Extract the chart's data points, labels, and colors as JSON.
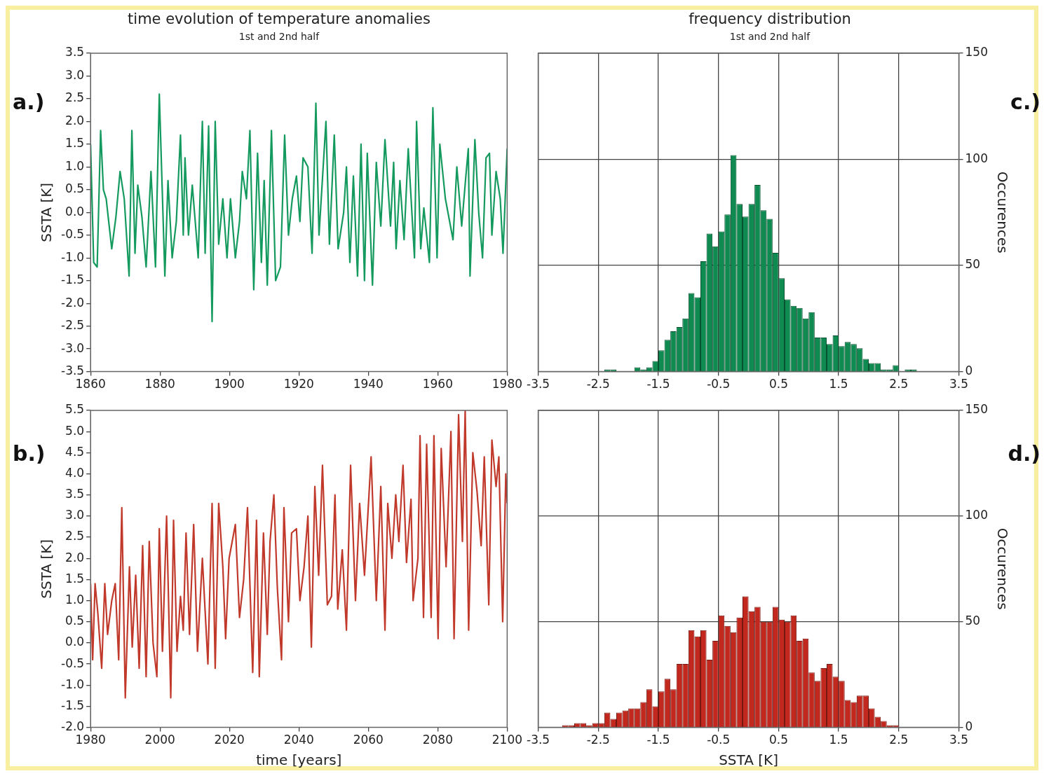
{
  "chart_data": [
    {
      "type": "line",
      "title": "time evolution of temperature anomalies",
      "subtitle": "1st and 2nd half",
      "ylabel": "SSTA [K]",
      "annotations": [
        "a.)"
      ],
      "x": [
        1860.0,
        1860.9,
        1861.9,
        1862.9,
        1863.7,
        1864.5,
        1866.1,
        1867.3,
        1868.5,
        1869.7,
        1871.1,
        1871.9,
        1872.8,
        1873.6,
        1874.8,
        1876.0,
        1877.4,
        1878.7,
        1879.8,
        1881.4,
        1882.3,
        1883.5,
        1884.7,
        1885.9,
        1886.7,
        1887.2,
        1888.2,
        1889.3,
        1891.0,
        1892.2,
        1893.0,
        1894.0,
        1895.0,
        1895.9,
        1896.9,
        1898.1,
        1899.3,
        1900.3,
        1901.7,
        1902.9,
        1903.7,
        1904.9,
        1905.9,
        1907.0,
        1908.1,
        1909.2,
        1910.0,
        1910.9,
        1912.1,
        1913.3,
        1914.7,
        1915.9,
        1917.0,
        1918.1,
        1919.3,
        1920.3,
        1921.2,
        1922.6,
        1923.8,
        1924.9,
        1925.8,
        1927.8,
        1928.8,
        1930.2,
        1931.3,
        1932.9,
        1933.7,
        1934.7,
        1935.7,
        1936.9,
        1937.9,
        1938.9,
        1939.7,
        1941.2,
        1942.3,
        1943.6,
        1944.8,
        1946.4,
        1947.3,
        1948.0,
        1949.1,
        1950.3,
        1951.5,
        1953.3,
        1953.9,
        1955.1,
        1956.0,
        1957.6,
        1958.6,
        1959.8,
        1960.6,
        1962.2,
        1964.4,
        1965.5,
        1966.9,
        1968.1,
        1968.8,
        1969.3,
        1970.7,
        1971.8,
        1972.9,
        1973.9,
        1974.9,
        1975.6,
        1976.8,
        1978.0,
        1978.8,
        1980.0
      ],
      "series": [
        {
          "color": "#149a5e",
          "values": [
            1.5,
            -1.1,
            -1.2,
            1.8,
            0.5,
            0.3,
            -0.8,
            -0.1,
            0.9,
            0.3,
            -1.4,
            1.8,
            -0.9,
            0.6,
            -0.1,
            -1.2,
            0.9,
            -1.2,
            2.6,
            -1.4,
            0.7,
            -1.0,
            -0.2,
            1.7,
            -0.5,
            1.2,
            -0.5,
            0.6,
            -1.0,
            2.0,
            -0.9,
            1.9,
            -2.4,
            2.0,
            -0.7,
            0.3,
            -1.0,
            0.3,
            -1.0,
            -0.2,
            0.9,
            0.3,
            1.8,
            -1.7,
            1.3,
            -1.1,
            0.7,
            -1.6,
            1.8,
            -1.5,
            -1.2,
            1.7,
            -0.5,
            0.3,
            0.8,
            -0.2,
            1.2,
            1.0,
            -0.9,
            2.4,
            -0.5,
            2.0,
            -0.7,
            1.7,
            -0.8,
            0.0,
            1.0,
            -1.1,
            0.8,
            -1.4,
            1.5,
            -1.5,
            1.3,
            -1.6,
            1.1,
            -0.3,
            1.6,
            -0.3,
            1.1,
            -0.8,
            0.7,
            -0.6,
            1.4,
            -1.0,
            2.0,
            -0.8,
            0.1,
            -1.1,
            2.3,
            -1.0,
            1.5,
            0.3,
            -0.6,
            1.0,
            -0.3,
            0.8,
            1.4,
            -1.4,
            1.6,
            0.0,
            -1.0,
            1.2,
            1.3,
            -0.5,
            0.9,
            0.3,
            -0.9,
            1.4
          ]
        }
      ],
      "xlim": [
        1860,
        1980
      ],
      "xticks": [
        1860,
        1880,
        1900,
        1920,
        1940,
        1960,
        1980
      ],
      "ylim": [
        -3.5,
        3.5
      ],
      "yticks": [
        -3.5,
        {
          "value": -3,
          "label": "-3.0"
        },
        -2.5,
        {
          "value": -2,
          "label": "-2.0"
        },
        -1.5,
        {
          "value": -1,
          "label": "-1.0"
        },
        -0.5,
        {
          "value": 0,
          "label": "0.0"
        },
        0.5,
        {
          "value": 1,
          "label": "1.0"
        },
        1.5,
        {
          "value": 2,
          "label": "2.0"
        },
        2.5,
        {
          "value": 3,
          "label": "3.0"
        },
        3.5
      ]
    },
    {
      "type": "histogram",
      "title": "frequency distribution",
      "subtitle": "1st and 2nd half",
      "ylabel": "Occurences",
      "annotations": [
        "c.)"
      ],
      "grid": true,
      "color": "#0f8a50",
      "bins": [
        -3.5,
        -3.4,
        -3.3,
        -3.2,
        -3.1,
        -3.0,
        -2.9,
        -2.8,
        -2.7,
        -2.6,
        -2.5,
        -2.4,
        -2.3,
        -2.2,
        -2.1,
        -2.0,
        -1.9,
        -1.8,
        -1.7,
        -1.6,
        -1.5,
        -1.4,
        -1.3,
        -1.2,
        -1.1,
        -1.0,
        -0.9,
        -0.8,
        -0.7,
        -0.6,
        -0.5,
        -0.4,
        -0.3,
        -0.2,
        -0.1,
        0.0,
        0.1,
        0.2,
        0.3,
        0.4,
        0.5,
        0.6,
        0.7,
        0.8,
        0.9,
        1.0,
        1.1,
        1.2,
        1.3,
        1.4,
        1.5,
        1.6,
        1.7,
        1.8,
        1.9,
        2.0,
        2.1,
        2.2,
        2.3,
        2.4,
        2.5,
        2.6,
        2.7,
        2.8,
        2.9,
        3.0,
        3.1,
        3.2,
        3.3,
        3.4,
        3.5
      ],
      "values": [
        0,
        0,
        0,
        0,
        0,
        0,
        0,
        0,
        0,
        0,
        0,
        1,
        1,
        0,
        0,
        0,
        2,
        1,
        2,
        5,
        10,
        15,
        19,
        21,
        25,
        37,
        35,
        52,
        65,
        59,
        66,
        74,
        102,
        79,
        73,
        79,
        88,
        76,
        72,
        56,
        44,
        34,
        31,
        30,
        25,
        28,
        16,
        16,
        13,
        17,
        12,
        14,
        13,
        11,
        6,
        4,
        4,
        1,
        1,
        3,
        0,
        1,
        1,
        0,
        0,
        0,
        0,
        0,
        0,
        0
      ],
      "xlim": [
        -3.5,
        3.5
      ],
      "xticks": [
        -3.5,
        -2.5,
        -1.5,
        -0.5,
        0.5,
        1.5,
        2.5,
        3.5
      ],
      "ylim": [
        0,
        150
      ],
      "yticks": [
        0,
        50,
        100,
        150
      ]
    },
    {
      "type": "line",
      "xlabel": "time [years]",
      "ylabel": "SSTA [K]",
      "annotations": [
        "b.)"
      ],
      "x": [
        1980.0,
        1980.6,
        1981.3,
        1982.1,
        1983.2,
        1984.1,
        1984.9,
        1986.1,
        1987.1,
        1988.1,
        1989.0,
        1990.0,
        1991.2,
        1992.0,
        1993.0,
        1994.0,
        1995.0,
        1996.0,
        1996.9,
        1998.0,
        1999.1,
        1999.8,
        2000.7,
        2001.9,
        2003.1,
        2003.9,
        2004.9,
        2005.9,
        2006.7,
        2007.5,
        2008.5,
        2009.7,
        2010.8,
        2012.2,
        2013.8,
        2015.0,
        2015.9,
        2016.9,
        2018.1,
        2018.9,
        2019.9,
        2021.7,
        2022.9,
        2024.1,
        2025.2,
        2026.7,
        2027.8,
        2028.6,
        2029.8,
        2030.9,
        2031.7,
        2032.8,
        2033.8,
        2035.0,
        2035.7,
        2037.0,
        2037.9,
        2039.3,
        2040.3,
        2041.5,
        2042.6,
        2043.6,
        2044.6,
        2045.7,
        2046.8,
        2048.2,
        2049.4,
        2050.4,
        2051.2,
        2052.5,
        2053.7,
        2054.9,
        2056.3,
        2057.5,
        2058.9,
        2060.8,
        2062.3,
        2063.6,
        2064.8,
        2065.6,
        2066.8,
        2067.9,
        2068.8,
        2070.0,
        2071.0,
        2072.3,
        2072.9,
        2074.3,
        2074.9,
        2075.9,
        2076.8,
        2078.1,
        2078.9,
        2080.1,
        2081.0,
        2082.4,
        2083.8,
        2084.7,
        2086.0,
        2087.1,
        2087.9,
        2088.9,
        2090.1,
        2091.3,
        2092.5,
        2093.4,
        2094.7,
        2095.6,
        2096.8,
        2097.6,
        2098.7,
        2099.6,
        2100.0
      ],
      "series": [
        {
          "color": "#c0392b",
          "values": [
            1.4,
            -0.4,
            1.4,
            0.7,
            -0.6,
            1.4,
            0.2,
            1.0,
            1.4,
            -0.4,
            3.2,
            -1.3,
            1.8,
            -0.1,
            1.6,
            -0.6,
            2.3,
            -0.8,
            2.4,
            0.0,
            -0.8,
            2.7,
            -0.2,
            3.0,
            -1.3,
            2.9,
            -0.2,
            1.1,
            0.3,
            2.6,
            0.2,
            2.8,
            -0.2,
            2.0,
            -0.5,
            3.3,
            -0.6,
            3.3,
            1.8,
            0.1,
            2.0,
            2.8,
            0.6,
            1.5,
            3.2,
            -0.7,
            2.9,
            -0.8,
            2.6,
            0.2,
            2.4,
            3.5,
            1.3,
            -0.4,
            3.2,
            0.5,
            2.6,
            2.7,
            1.0,
            1.8,
            3.0,
            -0.1,
            3.7,
            1.6,
            4.2,
            0.9,
            1.1,
            3.5,
            0.8,
            2.2,
            0.3,
            4.2,
            1.0,
            3.3,
            1.6,
            4.4,
            1.0,
            3.7,
            0.3,
            3.3,
            2.0,
            3.5,
            2.4,
            4.2,
            1.9,
            3.4,
            1.0,
            2.0,
            4.9,
            0.6,
            4.7,
            0.6,
            4.9,
            0.1,
            4.6,
            1.8,
            5.0,
            0.1,
            5.4,
            2.4,
            5.5,
            0.3,
            4.5,
            3.6,
            2.3,
            4.4,
            0.9,
            4.8,
            3.7,
            4.4,
            0.5,
            4.0,
            3.3
          ]
        }
      ],
      "xlim": [
        1980,
        2100
      ],
      "xticks": [
        1980,
        2000,
        2020,
        2040,
        2060,
        2080,
        2100
      ],
      "ylim": [
        -2,
        5.5
      ],
      "yticks": [
        {
          "value": -2,
          "label": "-2.0"
        },
        -1.5,
        {
          "value": -1,
          "label": "-1.0"
        },
        -0.5,
        {
          "value": 0,
          "label": "0.0"
        },
        0.5,
        {
          "value": 1,
          "label": "1.0"
        },
        1.5,
        {
          "value": 2,
          "label": "2.0"
        },
        2.5,
        {
          "value": 3,
          "label": "3.0"
        },
        3.5,
        {
          "value": 4,
          "label": "4.0"
        },
        4.5,
        {
          "value": 5,
          "label": "5.0"
        },
        5.5
      ]
    },
    {
      "type": "histogram",
      "xlabel": "SSTA [K]",
      "ylabel": "Occurences",
      "annotations": [
        "d.)"
      ],
      "grid": true,
      "color": "#c3281e",
      "bins": [
        -3.5,
        -3.4,
        -3.3,
        -3.2,
        -3.1,
        -3.0,
        -2.9,
        -2.8,
        -2.7,
        -2.6,
        -2.5,
        -2.4,
        -2.3,
        -2.2,
        -2.1,
        -2.0,
        -1.9,
        -1.8,
        -1.7,
        -1.6,
        -1.5,
        -1.4,
        -1.3,
        -1.2,
        -1.1,
        -1.0,
        -0.9,
        -0.8,
        -0.7,
        -0.6,
        -0.5,
        -0.4,
        -0.3,
        -0.2,
        -0.1,
        0.0,
        0.1,
        0.2,
        0.3,
        0.4,
        0.5,
        0.6,
        0.7,
        0.8,
        0.9,
        1.0,
        1.1,
        1.2,
        1.3,
        1.4,
        1.5,
        1.6,
        1.7,
        1.8,
        1.9,
        2.0,
        2.1,
        2.2,
        2.3,
        2.4,
        2.5,
        2.6,
        2.7,
        2.8,
        2.9,
        3.0,
        3.1,
        3.2,
        3.3,
        3.4,
        3.5
      ],
      "values": [
        0,
        0,
        0,
        0,
        1,
        1,
        2,
        2,
        1,
        2,
        2,
        7,
        4,
        7,
        8,
        9,
        9,
        12,
        18,
        10,
        17,
        23,
        18,
        30,
        30,
        46,
        43,
        46,
        32,
        41,
        53,
        48,
        45,
        52,
        62,
        55,
        57,
        50,
        50,
        57,
        51,
        50,
        53,
        41,
        42,
        26,
        22,
        28,
        30,
        24,
        22,
        13,
        12,
        15,
        15,
        9,
        5,
        3,
        1,
        1,
        0,
        0,
        0,
        0,
        0,
        0,
        0,
        0,
        0,
        0
      ],
      "xlim": [
        -3.5,
        3.5
      ],
      "xticks": [
        -3.5,
        -2.5,
        -1.5,
        -0.5,
        0.5,
        1.5,
        2.5,
        3.5
      ],
      "ylim": [
        0,
        150
      ],
      "yticks": [
        0,
        50,
        100,
        150
      ]
    }
  ]
}
